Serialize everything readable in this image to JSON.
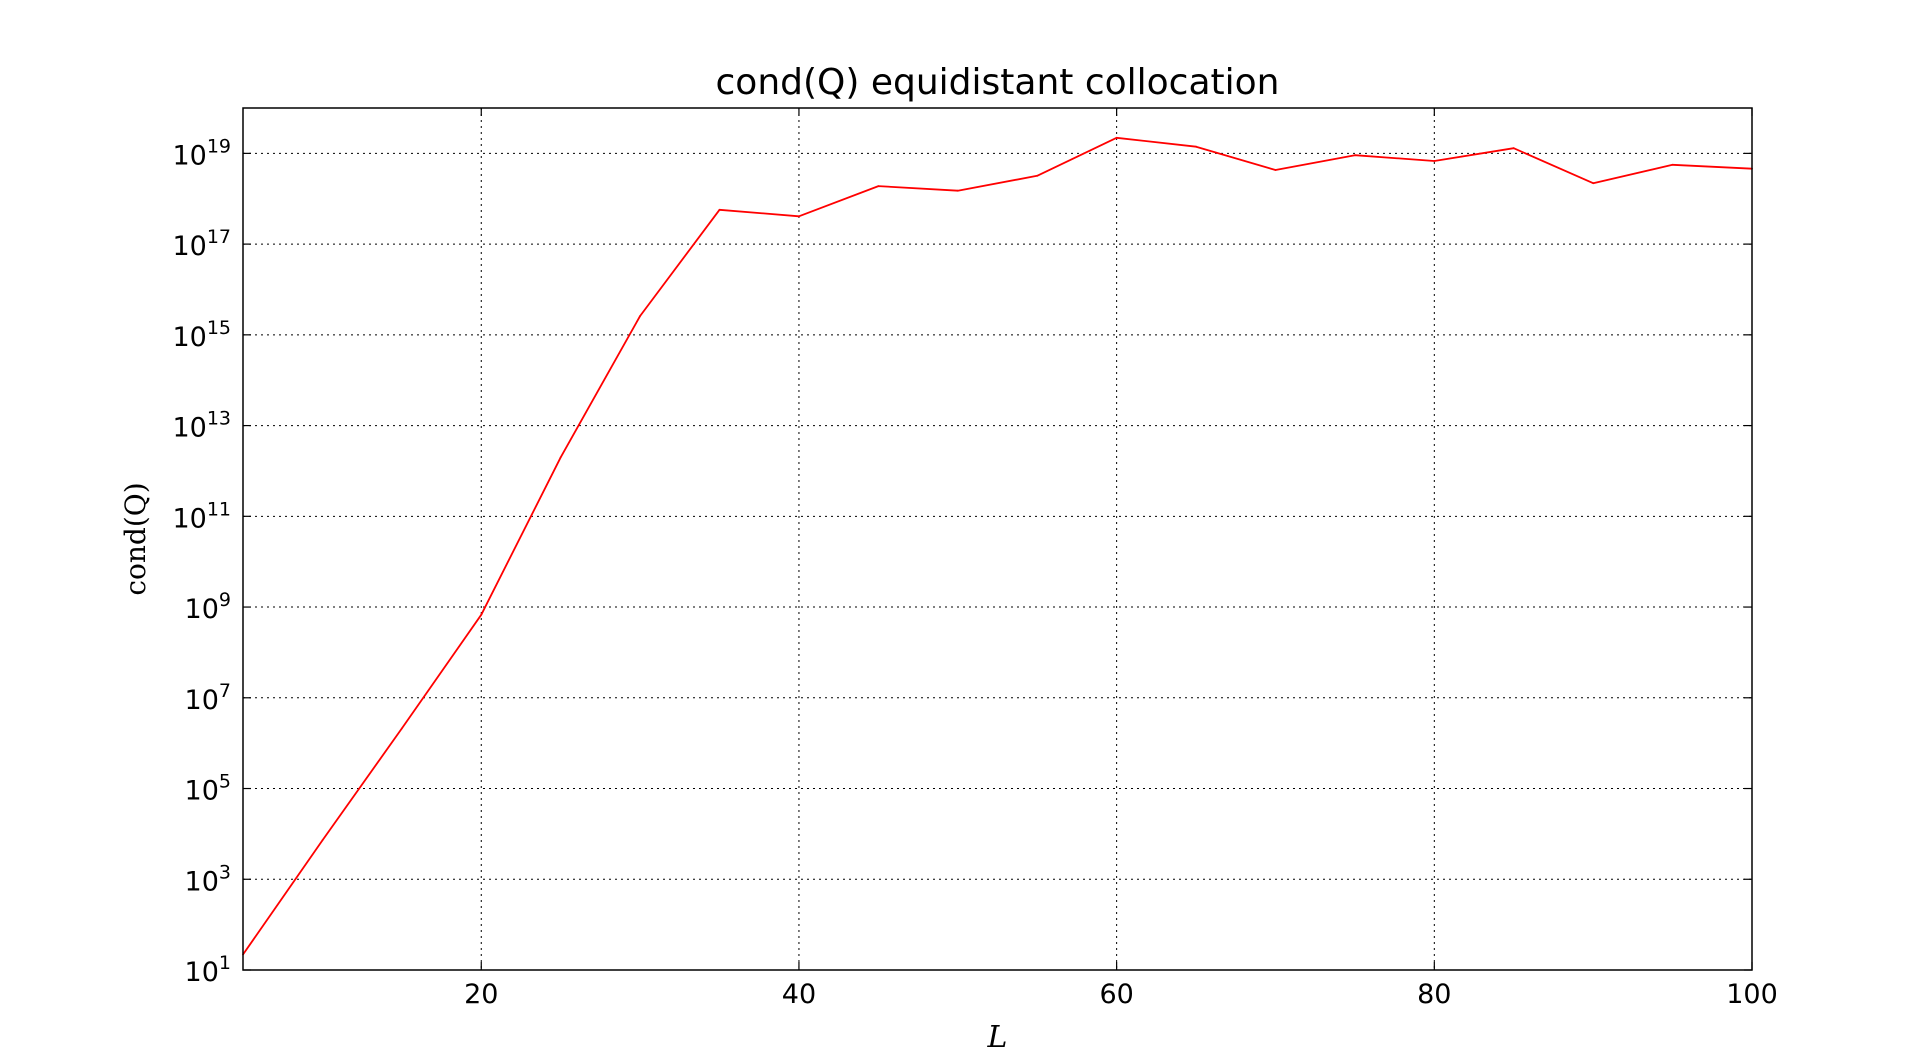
{
  "chart_data": {
    "type": "line",
    "title": "cond(Q) equidistant collocation",
    "xlabel": "L",
    "ylabel": "cond(Q)",
    "xlim": [
      5,
      100
    ],
    "ylim_log10": [
      1,
      20
    ],
    "yscale": "log",
    "grid": true,
    "line_color": "#ff0000",
    "x_ticks": [
      20,
      40,
      60,
      80,
      100
    ],
    "x_tick_labels": [
      "20",
      "40",
      "60",
      "80",
      "100"
    ],
    "y_ticks": [
      {
        "base": "10",
        "exp": "1"
      },
      {
        "base": "10",
        "exp": "3"
      },
      {
        "base": "10",
        "exp": "5"
      },
      {
        "base": "10",
        "exp": "7"
      },
      {
        "base": "10",
        "exp": "9"
      },
      {
        "base": "10",
        "exp": "11"
      },
      {
        "base": "10",
        "exp": "13"
      },
      {
        "base": "10",
        "exp": "15"
      },
      {
        "base": "10",
        "exp": "17"
      },
      {
        "base": "10",
        "exp": "19"
      }
    ],
    "series": [
      {
        "x": [
          5,
          10,
          15,
          20,
          25,
          30,
          35,
          40,
          45,
          50,
          55,
          60,
          65,
          70,
          75,
          80,
          85,
          90,
          95,
          100
        ],
        "y": [
          22.0,
          7200.0,
          2100000.0,
          680000000.0,
          2000000000000.0,
          2600000000000000.0,
          5.7e+17,
          4.1e+17,
          1.9e+18,
          1.5e+18,
          3.2e+18,
          2.2e+19,
          1.4e+19,
          4.3e+18,
          9.1e+18,
          6.8e+18,
          1.3e+19,
          2.2e+18,
          5.6e+18,
          4.6e+18
        ]
      }
    ]
  }
}
